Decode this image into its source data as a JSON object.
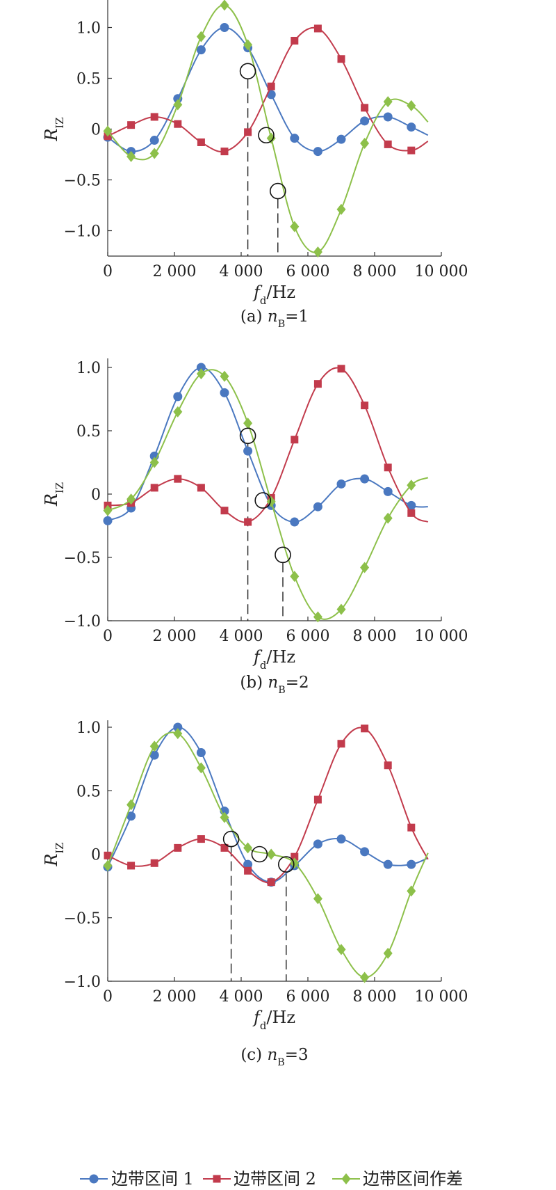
{
  "colors": {
    "series1": "#4a78c0",
    "series2": "#c23b4c",
    "series3": "#8dc04a"
  },
  "legend": [
    {
      "label": "边带区间 1",
      "marker": "circle",
      "color": "#4a78c0"
    },
    {
      "label": "边带区间 2",
      "marker": "square",
      "color": "#c23b4c"
    },
    {
      "label": "边带区间作差",
      "marker": "diamond",
      "color": "#8dc04a"
    }
  ],
  "chart_data": [
    {
      "type": "line",
      "caption": {
        "prefix": "(a) ",
        "var": "n",
        "sub": "B",
        "suffix": "=1"
      },
      "xlabel": {
        "var": "f",
        "sub": "d",
        "unit": "/Hz"
      },
      "ylabel": {
        "var": "R",
        "sub": "ΙZ"
      },
      "xlim": [
        0,
        9600
      ],
      "ylim": [
        -1.25,
        1.25
      ],
      "xticks": [
        0,
        2000,
        4000,
        6000,
        8000,
        10000
      ],
      "xtick_labels": [
        "0",
        "2 000",
        "4 000",
        "6 000",
        "8 000",
        "10 000"
      ],
      "yticks": [
        1.0,
        0.5,
        0,
        -0.5,
        -1.0
      ],
      "ytick_labels": [
        "1.0",
        "0.5",
        "0",
        "−0.5",
        "−1.0"
      ],
      "series": [
        {
          "name": "边带区间 1",
          "marker": "circle",
          "x": [
            0,
            700,
            1400,
            2100,
            2800,
            3500,
            4200,
            4900,
            5600,
            6300,
            7000,
            7700,
            8400,
            9100,
            9600
          ],
          "y": [
            -0.08,
            -0.22,
            -0.11,
            0.3,
            0.78,
            1.0,
            0.8,
            0.34,
            -0.09,
            -0.22,
            -0.1,
            0.08,
            0.12,
            0.02,
            -0.06
          ]
        },
        {
          "name": "边带区间 2",
          "marker": "square",
          "x": [
            0,
            700,
            1400,
            2100,
            2800,
            3500,
            4200,
            4900,
            5600,
            6300,
            7000,
            7700,
            8400,
            9100,
            9600
          ],
          "y": [
            -0.07,
            0.04,
            0.12,
            0.05,
            -0.13,
            -0.22,
            -0.03,
            0.42,
            0.87,
            0.99,
            0.69,
            0.21,
            -0.15,
            -0.21,
            -0.12
          ]
        },
        {
          "name": "边带区间作差",
          "marker": "diamond",
          "x": [
            0,
            700,
            1400,
            2100,
            2800,
            3500,
            4200,
            4900,
            5600,
            6300,
            7000,
            7700,
            8400,
            9100,
            9600
          ],
          "y": [
            -0.02,
            -0.27,
            -0.24,
            0.24,
            0.91,
            1.22,
            0.83,
            -0.09,
            -0.96,
            -1.21,
            -0.79,
            -0.14,
            0.27,
            0.23,
            0.07
          ]
        }
      ],
      "dashed_x": [
        4200,
        5100
      ],
      "circles": [
        [
          4200,
          0.57
        ],
        [
          4750,
          -0.06
        ],
        [
          5100,
          -0.61
        ]
      ]
    },
    {
      "type": "line",
      "caption": {
        "prefix": "(b) ",
        "var": "n",
        "sub": "B",
        "suffix": "=2"
      },
      "xlabel": {
        "var": "f",
        "sub": "d",
        "unit": "/Hz"
      },
      "ylabel": {
        "var": "R",
        "sub": "ΙZ"
      },
      "xlim": [
        0,
        9600
      ],
      "ylim": [
        -1.0,
        1.0
      ],
      "xticks": [
        0,
        2000,
        4000,
        6000,
        8000,
        10000
      ],
      "xtick_labels": [
        "0",
        "2 000",
        "4 000",
        "6 000",
        "8 000",
        "10 000"
      ],
      "yticks": [
        1.0,
        0.5,
        0,
        -0.5,
        -1.0
      ],
      "ytick_labels": [
        "1.0",
        "0.5",
        "0",
        "−0.5",
        "−1.0"
      ],
      "series": [
        {
          "name": "边带区间 1",
          "marker": "circle",
          "x": [
            0,
            700,
            1400,
            2100,
            2800,
            3500,
            4200,
            4900,
            5600,
            6300,
            7000,
            7700,
            8400,
            9100,
            9600
          ],
          "y": [
            -0.21,
            -0.11,
            0.3,
            0.77,
            1.0,
            0.8,
            0.34,
            -0.09,
            -0.22,
            -0.1,
            0.08,
            0.12,
            0.02,
            -0.09,
            -0.1
          ]
        },
        {
          "name": "边带区间 2",
          "marker": "square",
          "x": [
            0,
            700,
            1400,
            2100,
            2800,
            3500,
            4200,
            4900,
            5600,
            6300,
            7000,
            7700,
            8400,
            9100,
            9600
          ],
          "y": [
            -0.09,
            -0.07,
            0.05,
            0.12,
            0.05,
            -0.13,
            -0.22,
            -0.03,
            0.43,
            0.87,
            0.99,
            0.7,
            0.21,
            -0.15,
            -0.22
          ]
        },
        {
          "name": "边带区间作差",
          "marker": "diamond",
          "x": [
            0,
            700,
            1400,
            2100,
            2800,
            3500,
            4200,
            4900,
            5600,
            6300,
            7000,
            7700,
            8400,
            9100,
            9600
          ],
          "y": [
            -0.13,
            -0.04,
            0.25,
            0.65,
            0.95,
            0.93,
            0.56,
            -0.06,
            -0.65,
            -0.97,
            -0.91,
            -0.58,
            -0.19,
            0.07,
            0.13
          ]
        }
      ],
      "dashed_x": [
        4200,
        5250
      ],
      "circles": [
        [
          4200,
          0.46
        ],
        [
          4650,
          -0.05
        ],
        [
          5250,
          -0.48
        ]
      ]
    },
    {
      "type": "line",
      "caption": {
        "prefix": "(c) ",
        "var": "n",
        "sub": "B",
        "suffix": "=3"
      },
      "xlabel": {
        "var": "f",
        "sub": "d",
        "unit": "/Hz"
      },
      "ylabel": {
        "var": "R",
        "sub": "ΙZ"
      },
      "xlim": [
        0,
        9600
      ],
      "ylim": [
        -1.0,
        1.0
      ],
      "xticks": [
        0,
        2000,
        4000,
        6000,
        8000,
        10000
      ],
      "xtick_labels": [
        "0",
        "2 000",
        "4 000",
        "6 000",
        "8 000",
        "10 000"
      ],
      "yticks": [
        1.0,
        0.5,
        0,
        -0.5,
        -1.0
      ],
      "ytick_labels": [
        "1.0",
        "0.5",
        "0",
        "−0.5",
        "−1.0"
      ],
      "series": [
        {
          "name": "边带区间 1",
          "marker": "circle",
          "x": [
            0,
            700,
            1400,
            2100,
            2800,
            3500,
            4200,
            4900,
            5600,
            6300,
            7000,
            7700,
            8400,
            9100,
            9600
          ],
          "y": [
            -0.1,
            0.3,
            0.78,
            1.0,
            0.8,
            0.34,
            -0.08,
            -0.22,
            -0.09,
            0.08,
            0.12,
            0.02,
            -0.08,
            -0.08,
            -0.03
          ]
        },
        {
          "name": "边带区间 2",
          "marker": "square",
          "x": [
            0,
            700,
            1400,
            2100,
            2800,
            3500,
            4200,
            4900,
            5600,
            6300,
            7000,
            7700,
            8400,
            9100,
            9600
          ],
          "y": [
            -0.01,
            -0.09,
            -0.07,
            0.05,
            0.12,
            0.05,
            -0.13,
            -0.22,
            -0.02,
            0.43,
            0.87,
            0.99,
            0.7,
            0.21,
            -0.04
          ]
        },
        {
          "name": "边带区间作差",
          "marker": "diamond",
          "x": [
            0,
            700,
            1400,
            2100,
            2800,
            3500,
            4200,
            4900,
            5600,
            6300,
            7000,
            7700,
            8400,
            9100,
            9600
          ],
          "y": [
            -0.09,
            0.39,
            0.85,
            0.95,
            0.68,
            0.29,
            0.05,
            0.0,
            -0.07,
            -0.35,
            -0.75,
            -0.97,
            -0.78,
            -0.29,
            0.01
          ]
        }
      ],
      "dashed_x": [
        3700,
        5350
      ],
      "circles": [
        [
          3700,
          0.12
        ],
        [
          4550,
          0.0
        ],
        [
          5350,
          -0.08
        ]
      ]
    }
  ]
}
